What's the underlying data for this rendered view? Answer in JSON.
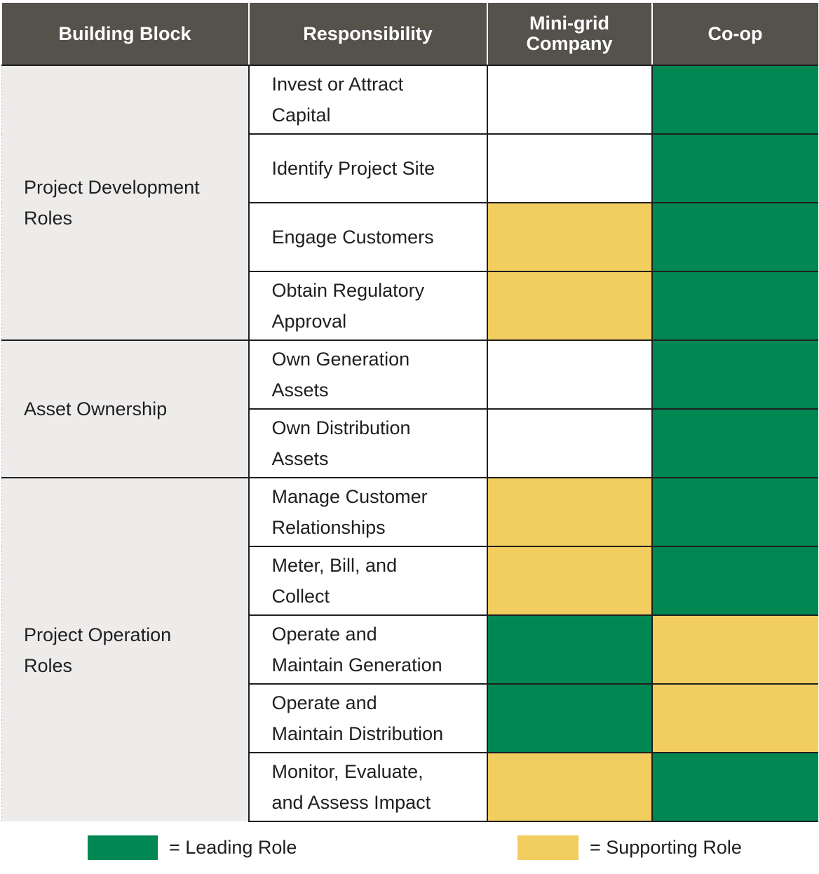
{
  "headers": {
    "building_block": "Building Block",
    "responsibility": "Responsibility",
    "minigrid_line1": "Mini-grid",
    "minigrid_line2": "Company",
    "coop": "Co-op"
  },
  "groups": [
    {
      "label_line1": "Project Development",
      "label_line2": "Roles"
    },
    {
      "label_line1": "Asset Ownership",
      "label_line2": ""
    },
    {
      "label_line1": "Project Operation",
      "label_line2": "Roles"
    }
  ],
  "rows": [
    {
      "line1": "Invest or Attract",
      "line2": "Capital",
      "minigrid": "none",
      "coop": "lead"
    },
    {
      "line1": "Identify Project Site",
      "line2": "",
      "minigrid": "none",
      "coop": "lead"
    },
    {
      "line1": "Engage Customers",
      "line2": "",
      "minigrid": "support",
      "coop": "lead"
    },
    {
      "line1": "Obtain Regulatory",
      "line2": "Approval",
      "minigrid": "support",
      "coop": "lead"
    },
    {
      "line1": "Own Generation",
      "line2": "Assets",
      "minigrid": "none",
      "coop": "lead"
    },
    {
      "line1": "Own Distribution",
      "line2": "Assets",
      "minigrid": "none",
      "coop": "lead"
    },
    {
      "line1": "Manage Customer",
      "line2": "Relationships",
      "minigrid": "support",
      "coop": "lead"
    },
    {
      "line1": "Meter, Bill, and",
      "line2": "Collect",
      "minigrid": "support",
      "coop": "lead"
    },
    {
      "line1": "Operate and",
      "line2": "Maintain Generation",
      "minigrid": "lead",
      "coop": "support"
    },
    {
      "line1": "Operate and",
      "line2": "Maintain Distribution",
      "minigrid": "lead",
      "coop": "support"
    },
    {
      "line1": "Monitor, Evaluate,",
      "line2": "and Assess Impact",
      "minigrid": "support",
      "coop": "lead"
    }
  ],
  "legend": {
    "leading": "= Leading Role",
    "supporting": "= Supporting Role"
  },
  "colors": {
    "leading": "#008752",
    "supporting": "#f2cd5f",
    "header_bg": "#55524c",
    "block_bg": "#eeeceb"
  }
}
